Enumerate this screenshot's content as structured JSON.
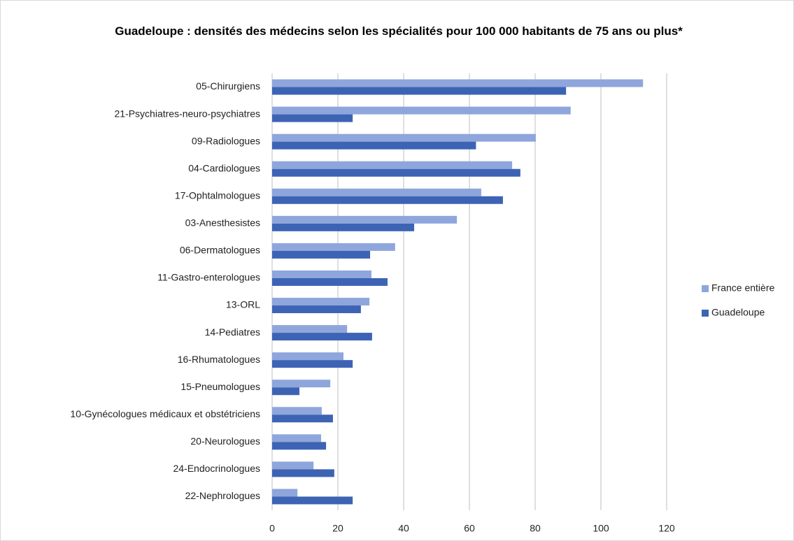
{
  "chart_data": {
    "type": "hbar",
    "title": "Guadeloupe : densités des médecins selon les spécialités pour 100 000 habitants de 75 ans ou plus*",
    "categories": [
      "05-Chirurgiens",
      "21-Psychiatres-neuro-psychiatres",
      "09-Radiologues",
      "04-Cardiologues",
      "17-Ophtalmologues",
      "03-Anesthesistes",
      "06-Dermatologues",
      "11-Gastro-enterologues",
      "13-ORL",
      "14-Pediatres",
      "16-Rhumatologues",
      "15-Pneumologues",
      "10-Gynécologues médicaux et obstétriciens",
      "20-Neurologues",
      "24-Endocrinologues",
      "22-Nephrologues"
    ],
    "series": [
      {
        "name": "France entière",
        "color": "#8fa6dc",
        "values": [
          112.8,
          90.8,
          80.2,
          73,
          63.6,
          56.2,
          37.4,
          30.2,
          29.6,
          22.8,
          21.7,
          17.7,
          15.1,
          14.9,
          12.6,
          7.7
        ]
      },
      {
        "name": "Guadeloupe",
        "color": "#3d63b4",
        "values": [
          89.4,
          24.5,
          62,
          75.5,
          70.2,
          43.2,
          29.8,
          35.1,
          27,
          30.4,
          24.5,
          8.3,
          18.5,
          16.4,
          18.9,
          24.5
        ]
      }
    ],
    "xlim": [
      0,
      120
    ],
    "xticks": [
      0,
      20,
      40,
      60,
      80,
      100,
      120
    ],
    "grid": true,
    "legend": "right"
  }
}
